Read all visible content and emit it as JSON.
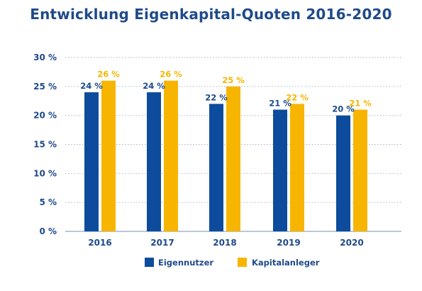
{
  "chart_data": {
    "type": "bar",
    "title": "Entwicklung Eigenkapital-Quoten 2016-2020",
    "categories": [
      "2016",
      "2017",
      "2018",
      "2019",
      "2020"
    ],
    "series": [
      {
        "name": "Eigennutzer",
        "values": [
          24,
          24,
          22,
          21,
          20
        ],
        "labels": [
          "24 %",
          "24 %",
          "22 %",
          "21 %",
          "20 %"
        ],
        "color": "#0d4c9c"
      },
      {
        "name": "Kapitalanleger",
        "values": [
          26,
          26,
          25,
          22,
          21
        ],
        "labels": [
          "26 %",
          "26 %",
          "25 %",
          "22 %",
          "21 %"
        ],
        "color": "#f7b500"
      }
    ],
    "ylim": [
      0,
      30
    ],
    "yticks": [
      0,
      5,
      10,
      15,
      20,
      25,
      30
    ],
    "ytick_labels": [
      "0 %",
      "5 %",
      "10 %",
      "15 %",
      "20 %",
      "25 %",
      "30 %"
    ],
    "xlabel": "",
    "ylabel": "",
    "grid": "horizontal dotted",
    "legend": "bottom"
  }
}
